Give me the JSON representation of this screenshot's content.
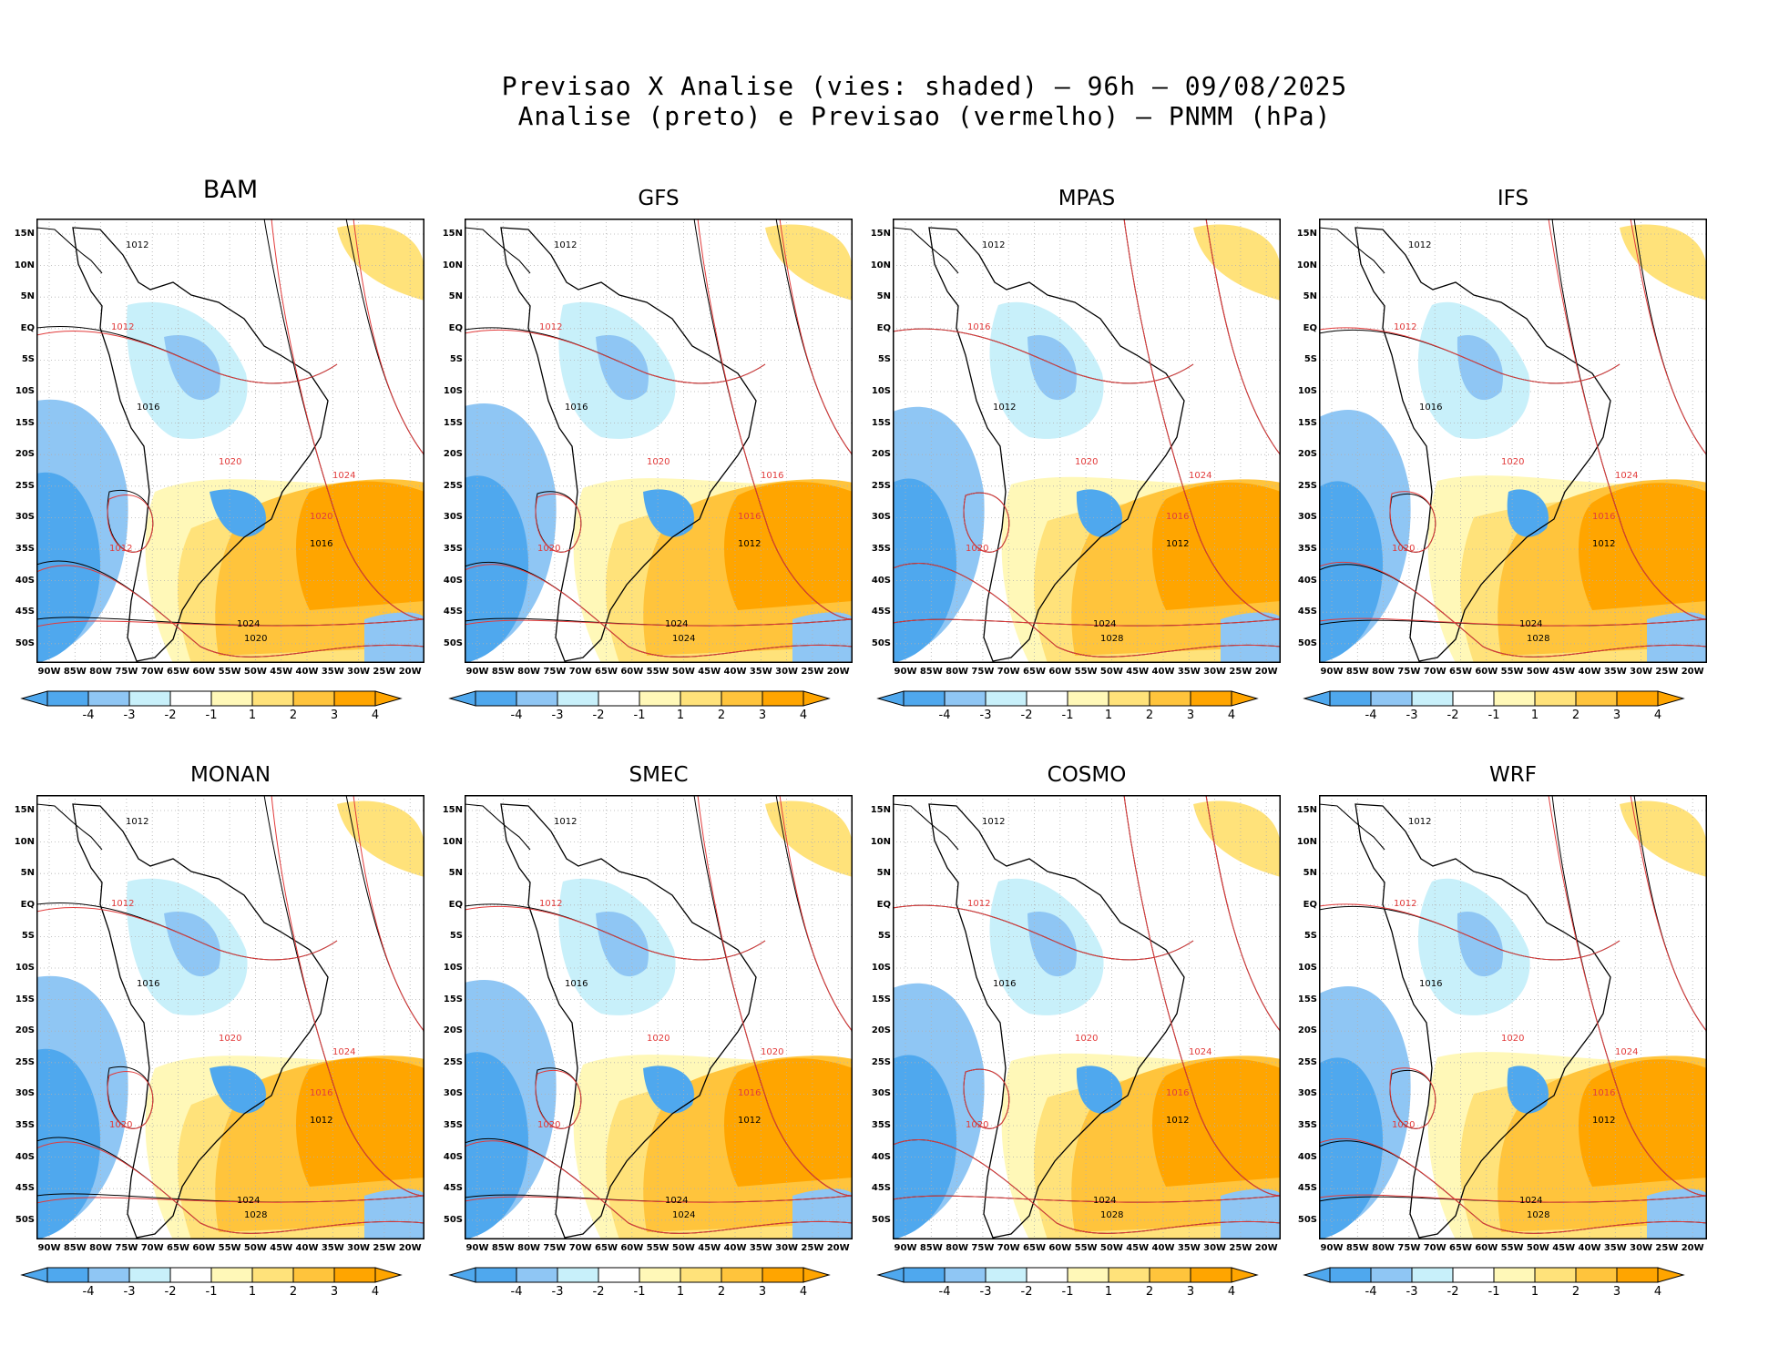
{
  "title": {
    "line1": "Previsao X Analise (vies: shaded) – 96h – 09/08/2025",
    "line2": "Analise (preto) e Previsao (vermelho) – PNMM (hPa)"
  },
  "colors": {
    "neg4": "#4fa8ee",
    "neg3": "#8fc6f4",
    "neg2": "#c8f0fa",
    "neg1": "#ffffff",
    "pos1": "#fff8b8",
    "pos2": "#ffe27a",
    "pos3": "#ffc43c",
    "pos4": "#ffa500",
    "analysis": "#000000",
    "forecast": "#e23b3b"
  },
  "lat_labels": [
    "15N",
    "10N",
    "5N",
    "EQ",
    "5S",
    "10S",
    "15S",
    "20S",
    "25S",
    "30S",
    "35S",
    "40S",
    "45S",
    "50S"
  ],
  "lon_labels": [
    "90W",
    "85W",
    "80W",
    "75W",
    "70W",
    "65W",
    "60W",
    "55W",
    "50W",
    "45W",
    "40W",
    "35W",
    "30W",
    "25W",
    "20W"
  ],
  "colorbar_labels": [
    "-4",
    "-3",
    "-2",
    "-1",
    "1",
    "2",
    "3",
    "4"
  ],
  "panels": [
    {
      "model": "BAM",
      "isobars": [
        "1012",
        "1012",
        "1016",
        "1020",
        "1024",
        "1020",
        "1016",
        "1012",
        "1020",
        "1024"
      ]
    },
    {
      "model": "GFS",
      "isobars": [
        "1012",
        "1012",
        "1016",
        "1020",
        "1024",
        "1016",
        "1012",
        "1020",
        "1024",
        "1016"
      ]
    },
    {
      "model": "MPAS",
      "isobars": [
        "1012",
        "1016",
        "1012",
        "1020",
        "1024",
        "1016",
        "1012",
        "1020",
        "1028",
        "1024"
      ]
    },
    {
      "model": "IFS",
      "isobars": [
        "1012",
        "1012",
        "1016",
        "1020",
        "1024",
        "1016",
        "1012",
        "1020",
        "1028",
        "1024"
      ]
    },
    {
      "model": "MONAN",
      "isobars": [
        "1012",
        "1012",
        "1016",
        "1020",
        "1024",
        "1016",
        "1012",
        "1020",
        "1028",
        "1024"
      ]
    },
    {
      "model": "SMEC",
      "isobars": [
        "1012",
        "1012",
        "1016",
        "1020",
        "1024",
        "1016",
        "1012",
        "1020",
        "1024",
        "1020"
      ]
    },
    {
      "model": "COSMO",
      "isobars": [
        "1012",
        "1012",
        "1016",
        "1020",
        "1024",
        "1016",
        "1012",
        "1020",
        "1028",
        "1024"
      ]
    },
    {
      "model": "WRF",
      "isobars": [
        "1012",
        "1012",
        "1016",
        "1020",
        "1024",
        "1016",
        "1012",
        "1020",
        "1028",
        "1024"
      ]
    }
  ]
}
